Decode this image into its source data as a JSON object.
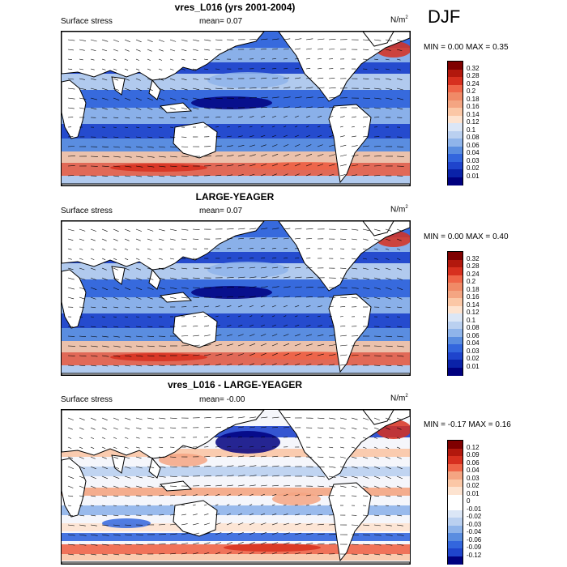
{
  "season": "DJF",
  "panels": [
    {
      "title": "vres_L016 (yrs 2001-2004)",
      "field": "Surface stress",
      "mean_label": "mean=",
      "mean_value": "0.07",
      "units": "N/m",
      "units_exp": "2",
      "min_label": "MIN =",
      "min_value": "0.00",
      "max_label": "MAX =",
      "max_value": "0.35",
      "colorbar_ticks": [
        "0.32",
        "0.28",
        "0.24",
        "0.2",
        "0.18",
        "0.16",
        "0.14",
        "0.12",
        "0.1",
        "0.08",
        "0.06",
        "0.04",
        "0.03",
        "0.02",
        "0.01"
      ]
    },
    {
      "title": "LARGE-YEAGER",
      "field": "Surface stress",
      "mean_label": "mean=",
      "mean_value": "0.07",
      "units": "N/m",
      "units_exp": "2",
      "min_label": "MIN =",
      "min_value": "0.00",
      "max_label": "MAX =",
      "max_value": "0.40",
      "colorbar_ticks": [
        "0.32",
        "0.28",
        "0.24",
        "0.2",
        "0.18",
        "0.16",
        "0.14",
        "0.12",
        "0.1",
        "0.08",
        "0.06",
        "0.04",
        "0.03",
        "0.02",
        "0.01"
      ]
    },
    {
      "title": "vres_L016 - LARGE-YEAGER",
      "field": "Surface stress",
      "mean_label": "mean=",
      "mean_value": "-0.00",
      "units": "N/m",
      "units_exp": "2",
      "min_label": "MIN =",
      "min_value": "-0.17",
      "max_label": "MAX =",
      "max_value": "0.16",
      "colorbar_ticks": [
        "0.12",
        "0.09",
        "0.06",
        "0.04",
        "0.03",
        "0.02",
        "0.01",
        "0",
        "-0.01",
        "-0.02",
        "-0.03",
        "-0.04",
        "-0.06",
        "-0.09",
        "-0.12"
      ]
    }
  ],
  "colors": {
    "absolute_scale": [
      "#7f0000",
      "#b2180d",
      "#d7301f",
      "#ef6548",
      "#f08a67",
      "#f4a582",
      "#fbc7a6",
      "#fde3d0",
      "#dbe6f6",
      "#bad0f0",
      "#8fb4ea",
      "#5a8de0",
      "#3366dd",
      "#1f44cc",
      "#0a22a8",
      "#00007f"
    ],
    "diff_scale": [
      "#7f0000",
      "#b2180d",
      "#d7301f",
      "#ef6548",
      "#f4a582",
      "#fbc7a6",
      "#fde3d0",
      "#ffffff",
      "#ffffff",
      "#dbe6f6",
      "#bad0f0",
      "#8fb4ea",
      "#5a8de0",
      "#3366dd",
      "#1f44cc",
      "#00007f"
    ],
    "land": "#ffffff",
    "coast": "#000000"
  }
}
